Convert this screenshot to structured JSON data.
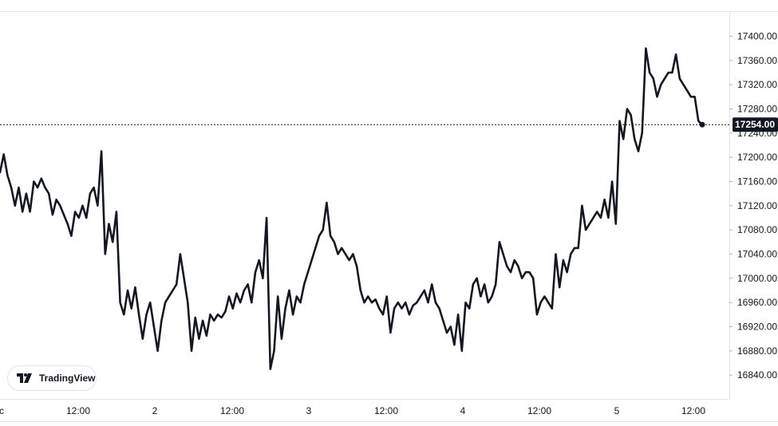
{
  "chart_data": {
    "type": "line",
    "title": "",
    "xlabel": "",
    "ylabel": "",
    "ylim": [
      16810,
      17420
    ],
    "grid": false,
    "series": [
      {
        "values": [
          17175,
          17205,
          17170,
          17150,
          17120,
          17150,
          17110,
          17140,
          17110,
          17160,
          17150,
          17165,
          17150,
          17140,
          17105,
          17130,
          17120,
          17105,
          17090,
          17070,
          17110,
          17100,
          17120,
          17100,
          17140,
          17150,
          17120,
          17210,
          17040,
          17090,
          17060,
          17110,
          16960,
          16940,
          16980,
          16950,
          16985,
          16940,
          16900,
          16940,
          16960,
          16920,
          16880,
          16930,
          16960,
          16970,
          16980,
          16990,
          17040,
          17000,
          16960,
          16880,
          16935,
          16900,
          16930,
          16905,
          16940,
          16930,
          16940,
          16935,
          16945,
          16970,
          16950,
          16975,
          16960,
          16980,
          16990,
          16960,
          17010,
          17030,
          17000,
          17100,
          16850,
          16880,
          16970,
          16900,
          16950,
          16980,
          16940,
          16970,
          16960,
          16990,
          17010,
          17030,
          17050,
          17070,
          17080,
          17125,
          17070,
          17060,
          17040,
          17050,
          17040,
          17030,
          17040,
          17020,
          16980,
          16960,
          16970,
          16960,
          16965,
          16950,
          16940,
          16970,
          16910,
          16950,
          16960,
          16950,
          16960,
          16940,
          16955,
          16960,
          16970,
          16980,
          16960,
          16990,
          16960,
          16950,
          16930,
          16910,
          16920,
          16890,
          16940,
          16880,
          16960,
          16950,
          16990,
          17000,
          16970,
          16990,
          16960,
          16970,
          16990,
          17060,
          17040,
          17020,
          17010,
          17030,
          17020,
          17000,
          17010,
          17010,
          17000,
          16940,
          16960,
          16970,
          16960,
          16950,
          17040,
          16985,
          17030,
          17010,
          17040,
          17050,
          17050,
          17120,
          17080,
          17090,
          17100,
          17110,
          17100,
          17130,
          17100,
          17160,
          17090,
          17260,
          17230,
          17280,
          17270,
          17230,
          17210,
          17240,
          17380,
          17340,
          17330,
          17300,
          17320,
          17330,
          17340,
          17340,
          17370,
          17330,
          17320,
          17310,
          17300,
          17300,
          17260,
          17254
        ]
      }
    ],
    "x_ticks": [
      "ec",
      "12:00",
      "2",
      "12:00",
      "3",
      "12:00",
      "4",
      "12:00",
      "5",
      "12:00"
    ],
    "y_ticks": [
      "17400.00",
      "17360.00",
      "17320.00",
      "17280.00",
      "17240.00",
      "17200.00",
      "17160.00",
      "17120.00",
      "17080.00",
      "17040.00",
      "17000.00",
      "16960.00",
      "16920.00",
      "16880.00",
      "16840.00"
    ],
    "last_price_label": "17254.00",
    "last_price": 17254,
    "line_color": "#131722",
    "badge_color": "#131722"
  },
  "branding": {
    "logo_text": "TradingView"
  }
}
